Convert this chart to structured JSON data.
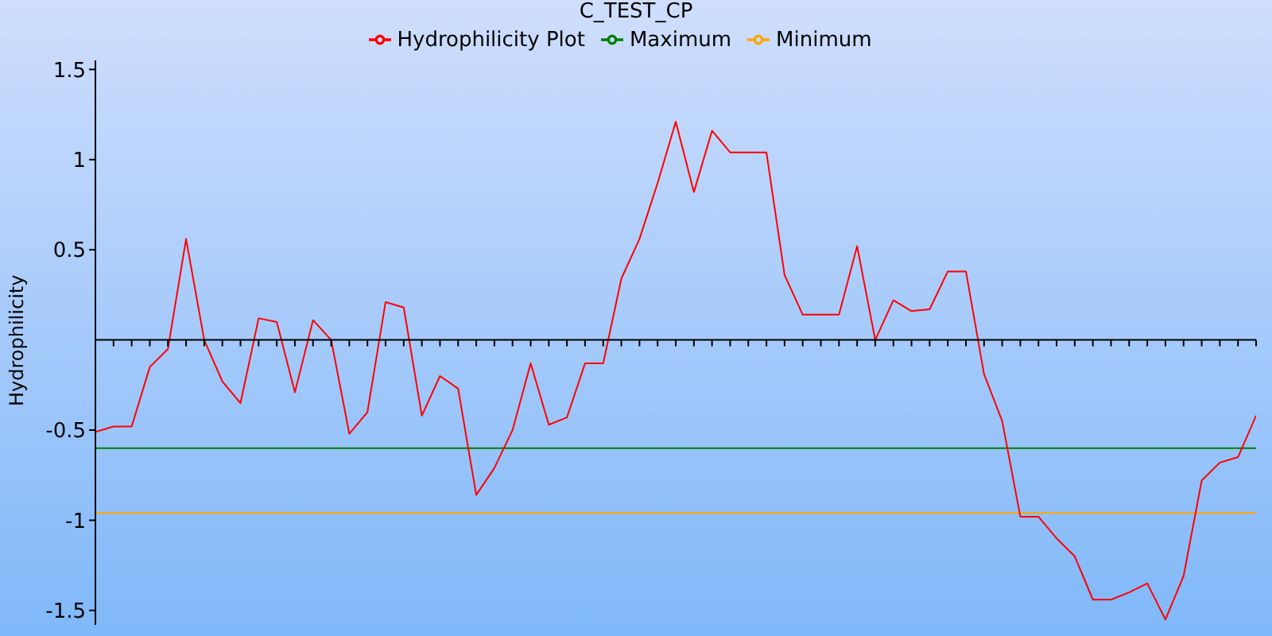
{
  "chart_data": {
    "type": "line",
    "title": "C_TEST_CP",
    "ylabel": "Hydrophilicity",
    "categories": [
      null,
      null,
      null,
      null,
      null,
      null,
      null,
      null,
      null,
      null,
      null,
      null,
      null,
      null,
      null,
      null,
      null,
      null,
      null,
      null,
      null,
      null,
      null,
      null,
      null,
      null,
      null,
      null,
      null,
      null,
      null,
      null,
      null,
      null,
      null,
      null,
      null,
      null,
      null,
      null,
      null,
      null,
      null,
      null,
      null,
      null,
      null,
      null,
      null,
      null,
      null,
      null,
      null,
      null,
      null,
      null,
      null,
      null,
      null,
      null,
      null,
      null,
      null,
      null,
      null
    ],
    "ylim": [
      -1.58,
      1.55
    ],
    "yticks": [
      -1.5,
      -1,
      -0.5,
      0.5,
      1,
      1.5
    ],
    "legend": "top",
    "grid": false,
    "series": [
      {
        "name": "Minimum",
        "color": "#ffa500",
        "values": [
          -0.96,
          -0.96,
          -0.96,
          -0.96,
          -0.96,
          -0.96,
          -0.96,
          -0.96,
          -0.96,
          -0.96,
          -0.96,
          -0.96,
          -0.96,
          -0.96,
          -0.96,
          -0.96,
          -0.96,
          -0.96,
          -0.96,
          -0.96,
          -0.96,
          -0.96,
          -0.96,
          -0.96,
          -0.96,
          -0.96,
          -0.96,
          -0.96,
          -0.96,
          -0.96,
          -0.96,
          -0.96,
          -0.96,
          -0.96,
          -0.96,
          -0.96,
          -0.96,
          -0.96,
          -0.96,
          -0.96,
          -0.96,
          -0.96,
          -0.96,
          -0.96,
          -0.96,
          -0.96,
          -0.96,
          -0.96,
          -0.96,
          -0.96,
          -0.96,
          -0.96,
          -0.96,
          -0.96,
          -0.96,
          -0.96,
          -0.96,
          -0.96,
          -0.96,
          -0.96,
          -0.96,
          -0.96,
          -0.96,
          -0.96,
          -0.96
        ]
      },
      {
        "name": "Maximum",
        "color": "#008000",
        "values": [
          -0.6,
          -0.6,
          -0.6,
          -0.6,
          -0.6,
          -0.6,
          -0.6,
          -0.6,
          -0.6,
          -0.6,
          -0.6,
          -0.6,
          -0.6,
          -0.6,
          -0.6,
          -0.6,
          -0.6,
          -0.6,
          -0.6,
          -0.6,
          -0.6,
          -0.6,
          -0.6,
          -0.6,
          -0.6,
          -0.6,
          -0.6,
          -0.6,
          -0.6,
          -0.6,
          -0.6,
          -0.6,
          -0.6,
          -0.6,
          -0.6,
          -0.6,
          -0.6,
          -0.6,
          -0.6,
          -0.6,
          -0.6,
          -0.6,
          -0.6,
          -0.6,
          -0.6,
          -0.6,
          -0.6,
          -0.6,
          -0.6,
          -0.6,
          -0.6,
          -0.6,
          -0.6,
          -0.6,
          -0.6,
          -0.6,
          -0.6,
          -0.6,
          -0.6,
          -0.6,
          -0.6,
          -0.6,
          -0.6,
          -0.6,
          -0.6
        ]
      },
      {
        "name": "Hydrophilicity Plot",
        "color": "#ff0000",
        "values": [
          -0.51,
          -0.48,
          -0.48,
          -0.15,
          -0.05,
          0.56,
          0.0,
          -0.23,
          -0.35,
          0.12,
          0.1,
          -0.29,
          0.11,
          0.0,
          -0.52,
          -0.4,
          0.21,
          0.18,
          -0.42,
          -0.2,
          -0.27,
          -0.86,
          -0.71,
          -0.5,
          -0.13,
          -0.47,
          -0.43,
          -0.13,
          -0.13,
          0.34,
          0.56,
          0.87,
          1.21,
          0.82,
          1.16,
          1.04,
          1.04,
          1.04,
          0.36,
          0.14,
          0.14,
          0.14,
          0.52,
          0.0,
          0.22,
          0.16,
          0.17,
          0.38,
          0.38,
          -0.19,
          -0.45,
          -0.98,
          -0.98,
          -1.1,
          -1.2,
          -1.44,
          -1.44,
          -1.4,
          -1.35,
          -1.55,
          -1.31,
          -0.78,
          -0.68,
          -0.65,
          -0.42
        ]
      }
    ]
  }
}
